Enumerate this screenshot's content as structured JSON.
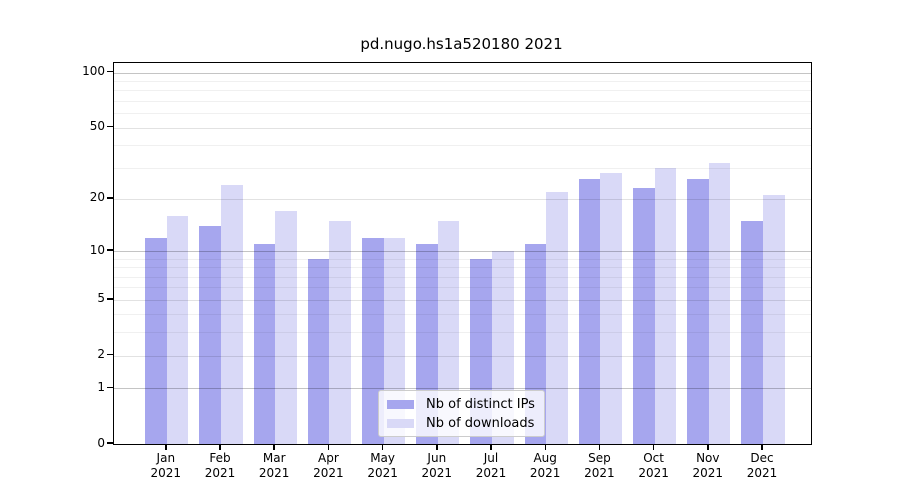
{
  "title": "pd.nugo.hs1a520180 2021",
  "chart_data": {
    "type": "bar",
    "title": "pd.nugo.hs1a520180 2021",
    "categories": [
      "Jan",
      "Feb",
      "Mar",
      "Apr",
      "May",
      "Jun",
      "Jul",
      "Aug",
      "Sep",
      "Oct",
      "Nov",
      "Dec"
    ],
    "year_label": "2021",
    "series": [
      {
        "name": "Nb of distinct IPs",
        "color": "#a6a6ee",
        "values": [
          12,
          14,
          11,
          9,
          12,
          11,
          9,
          11,
          26,
          23,
          26,
          15
        ]
      },
      {
        "name": "Nb of downloads",
        "color": "#d9d9f7",
        "values": [
          16,
          24,
          17,
          15,
          12,
          15,
          10,
          22,
          28,
          30,
          32,
          21
        ]
      }
    ],
    "yscale": "log1p",
    "ylim": [
      0,
      112
    ],
    "yticks": [
      0,
      1,
      2,
      5,
      10,
      20,
      50,
      100
    ],
    "gridlines": {
      "strong": [
        1,
        10,
        100
      ],
      "medium": [
        2,
        5,
        20,
        50
      ],
      "faint": [
        3,
        4,
        6,
        7,
        8,
        9,
        30,
        40,
        60,
        70,
        80,
        90
      ]
    },
    "grid": "horizontal",
    "legend_position": "lower center",
    "xlabel": "",
    "ylabel": ""
  },
  "legend": {
    "items": [
      {
        "label": "Nb of distinct IPs"
      },
      {
        "label": "Nb of downloads"
      }
    ]
  }
}
